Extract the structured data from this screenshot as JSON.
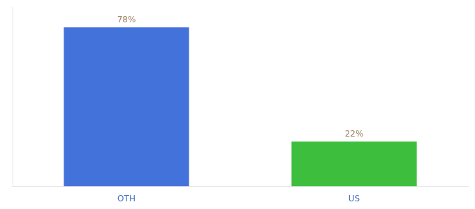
{
  "chart_data": {
    "type": "bar",
    "categories": [
      "OTH",
      "US"
    ],
    "values": [
      78,
      22
    ],
    "value_labels": [
      "78%",
      "22%"
    ],
    "colors": [
      "#4472db",
      "#3dbf3d"
    ],
    "ylim": [
      0,
      88
    ],
    "grid": false,
    "data_labels": true,
    "tick_labels": "x"
  }
}
